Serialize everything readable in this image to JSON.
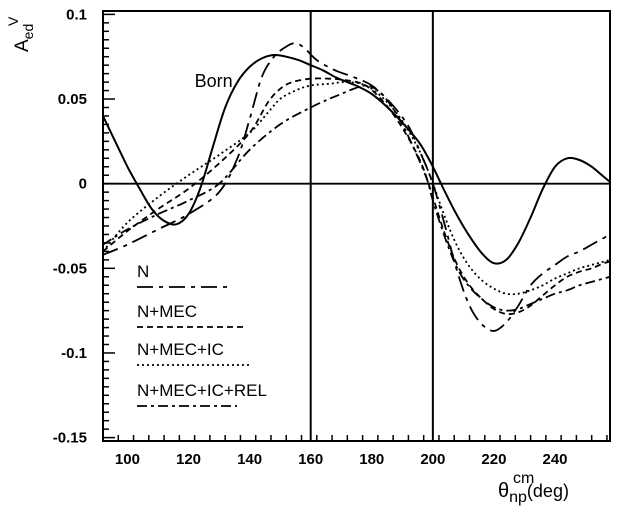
{
  "chart_data": {
    "type": "line",
    "xlabel": {
      "main": "θ",
      "sub": "np",
      "sup": "cm",
      "unit": "(deg)"
    },
    "ylabel": {
      "main": "A",
      "sub": "ed",
      "sup": "V"
    },
    "xlim": [
      92,
      258
    ],
    "ylim": [
      -0.152,
      0.102
    ],
    "x_ticks": [
      100,
      120,
      140,
      160,
      180,
      200,
      220,
      240
    ],
    "x_tick_labels": [
      "100",
      "120",
      "140",
      "160",
      "180",
      "200",
      "220",
      "240"
    ],
    "y_ticks": [
      -0.15,
      -0.1,
      -0.05,
      0,
      0.05,
      0.1
    ],
    "y_tick_labels": [
      "-0.15",
      "-0.1",
      "-0.05",
      "0",
      "0.05",
      "0.1"
    ],
    "reference_lines": {
      "vertical": [
        160,
        200
      ],
      "horizontal": [
        0
      ]
    },
    "annotations": [
      {
        "text": "Born",
        "x": 122,
        "y": 0.057
      }
    ],
    "legend": {
      "placement": "lower-left"
    },
    "series": [
      {
        "name": "",
        "label_annotation": "Born",
        "style": "solid",
        "x": [
          92,
          96,
          100,
          104,
          108,
          112,
          116,
          120,
          124,
          128,
          132,
          136,
          140,
          144,
          148,
          152,
          156,
          160,
          164,
          168,
          172,
          176,
          180,
          184,
          188,
          192,
          196,
          200,
          204,
          208,
          212,
          216,
          220,
          224,
          228,
          232,
          236,
          240,
          244,
          248,
          252,
          256,
          258
        ],
        "y": [
          0.04,
          0.025,
          0.01,
          -0.003,
          -0.015,
          -0.022,
          -0.024,
          -0.018,
          -0.002,
          0.022,
          0.045,
          0.06,
          0.069,
          0.074,
          0.076,
          0.075,
          0.073,
          0.07,
          0.067,
          0.063,
          0.06,
          0.057,
          0.053,
          0.047,
          0.04,
          0.032,
          0.023,
          0.01,
          -0.005,
          -0.019,
          -0.031,
          -0.041,
          -0.047,
          -0.045,
          -0.035,
          -0.02,
          -0.003,
          0.01,
          0.015,
          0.014,
          0.01,
          0.004,
          0.001
        ]
      },
      {
        "name": "N",
        "style": "longdash",
        "x": [
          92,
          100,
          110,
          120,
          130,
          136,
          140,
          144,
          148,
          152,
          155,
          158,
          162,
          168,
          174,
          180,
          186,
          192,
          196,
          200,
          204,
          208,
          212,
          216,
          220,
          224,
          228,
          232,
          236,
          240,
          244,
          248,
          252,
          256,
          258
        ],
        "y": [
          -0.042,
          -0.036,
          -0.027,
          -0.018,
          -0.005,
          0.015,
          0.038,
          0.063,
          0.075,
          0.081,
          0.083,
          0.08,
          0.073,
          0.067,
          0.063,
          0.058,
          0.048,
          0.034,
          0.018,
          0.0,
          -0.025,
          -0.052,
          -0.072,
          -0.083,
          -0.087,
          -0.082,
          -0.072,
          -0.06,
          -0.053,
          -0.048,
          -0.043,
          -0.04,
          -0.036,
          -0.032,
          -0.03
        ]
      },
      {
        "name": "N+MEC",
        "style": "dashed",
        "x": [
          92,
          100,
          110,
          120,
          130,
          140,
          146,
          150,
          154,
          160,
          166,
          172,
          178,
          184,
          190,
          196,
          200,
          204,
          208,
          212,
          216,
          220,
          224,
          228,
          232,
          236,
          240,
          244,
          248,
          252,
          256,
          258
        ],
        "y": [
          -0.04,
          -0.028,
          -0.015,
          -0.003,
          0.012,
          0.03,
          0.048,
          0.056,
          0.06,
          0.062,
          0.062,
          0.061,
          0.058,
          0.048,
          0.033,
          0.013,
          -0.008,
          -0.03,
          -0.048,
          -0.06,
          -0.068,
          -0.074,
          -0.077,
          -0.076,
          -0.072,
          -0.066,
          -0.06,
          -0.055,
          -0.052,
          -0.05,
          -0.047,
          -0.046
        ]
      },
      {
        "name": "N+MEC+IC",
        "style": "dotted",
        "x": [
          92,
          100,
          110,
          120,
          130,
          140,
          146,
          150,
          155,
          160,
          166,
          172,
          178,
          184,
          190,
          196,
          200,
          204,
          208,
          212,
          216,
          220,
          224,
          228,
          232,
          236,
          240,
          244,
          248,
          252,
          256,
          258
        ],
        "y": [
          -0.04,
          -0.023,
          -0.008,
          0.005,
          0.017,
          0.03,
          0.042,
          0.05,
          0.055,
          0.058,
          0.059,
          0.06,
          0.058,
          0.05,
          0.037,
          0.018,
          0.0,
          -0.02,
          -0.037,
          -0.049,
          -0.057,
          -0.062,
          -0.065,
          -0.065,
          -0.063,
          -0.06,
          -0.056,
          -0.053,
          -0.05,
          -0.048,
          -0.046,
          -0.045
        ]
      },
      {
        "name": "N+MEC+IC+REL",
        "style": "dashdot",
        "x": [
          92,
          100,
          110,
          120,
          130,
          140,
          150,
          160,
          166,
          170,
          174,
          178,
          182,
          186,
          190,
          194,
          198,
          200,
          204,
          208,
          212,
          216,
          220,
          224,
          228,
          232,
          236,
          240,
          244,
          248,
          252,
          256,
          258
        ],
        "y": [
          -0.036,
          -0.027,
          -0.018,
          -0.01,
          0.0,
          0.02,
          0.035,
          0.045,
          0.05,
          0.053,
          0.056,
          0.058,
          0.055,
          0.047,
          0.035,
          0.02,
          0.003,
          -0.01,
          -0.032,
          -0.05,
          -0.061,
          -0.068,
          -0.073,
          -0.075,
          -0.074,
          -0.071,
          -0.068,
          -0.065,
          -0.063,
          -0.06,
          -0.058,
          -0.056,
          -0.055
        ]
      }
    ]
  }
}
